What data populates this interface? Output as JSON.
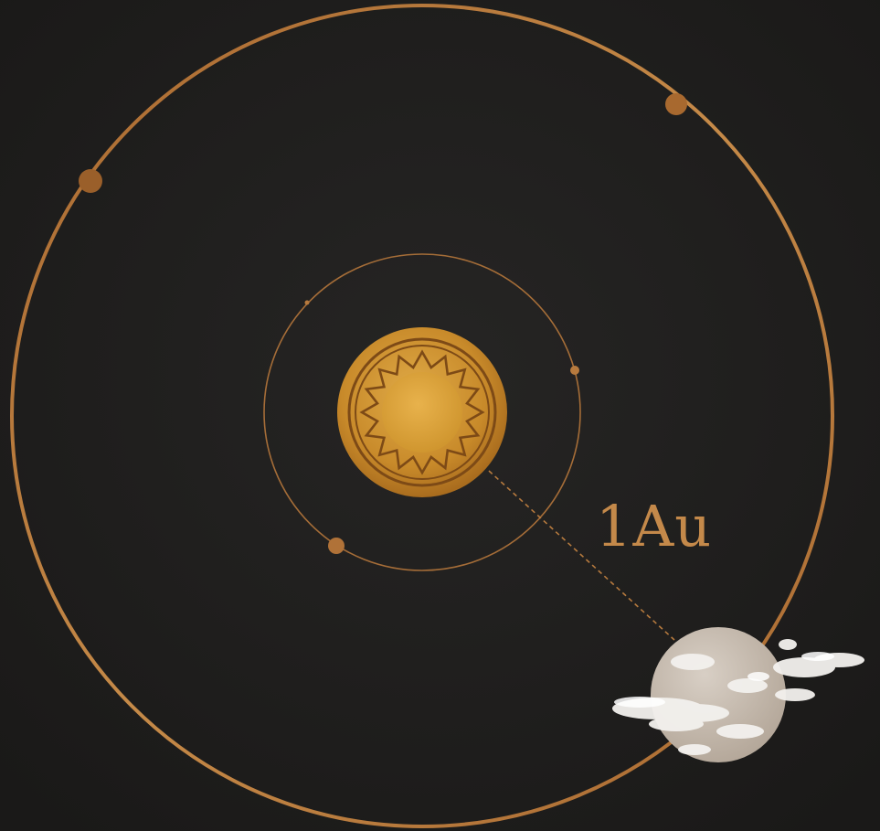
{
  "diagram": {
    "distance_label": "1Au",
    "colors": {
      "background": "#1e1d1c",
      "orbit": "#b67a3e",
      "sun": "#c98a2c",
      "sun_core": "#d9a23e",
      "sun_pattern": "#7d4a16",
      "planet": "#c9bfb4",
      "cloud": "#f3f1ee"
    },
    "icons": {
      "sun": "sun-icon",
      "planet": "cloudy-planet-icon"
    }
  }
}
